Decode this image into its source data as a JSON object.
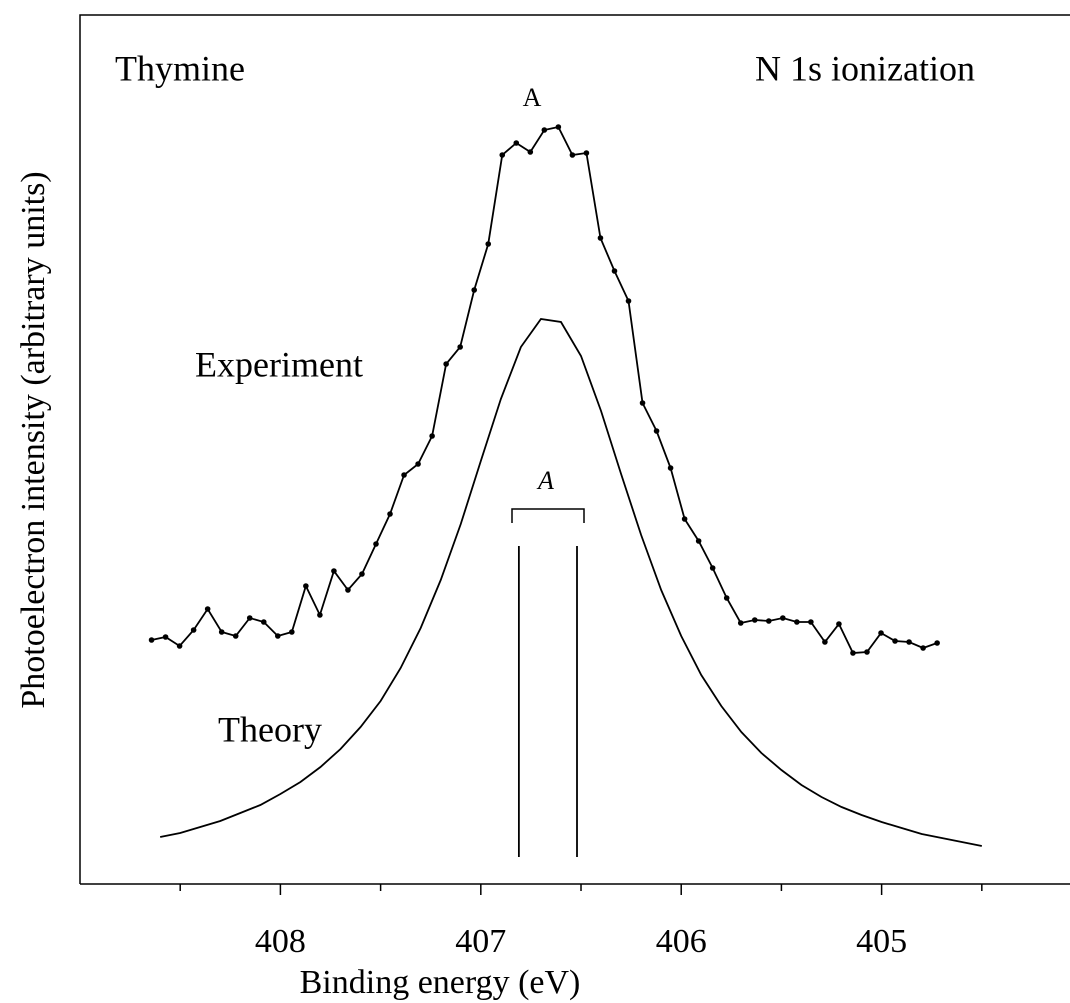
{
  "chart_data": {
    "type": "line",
    "x_label": "Binding energy (eV)",
    "y_label": "Photoelectron intensity (arbitrary units)",
    "annotations": [
      "Thymine",
      "N 1s ionization",
      "A",
      "Experiment",
      "Theory",
      "A"
    ],
    "xlim": [
      409,
      404.06
    ],
    "ylim": [
      0,
      869
    ],
    "xticks": [
      408,
      407,
      406,
      405
    ],
    "xminor": [
      408.5,
      407.5,
      406.5,
      405.5,
      404.5
    ],
    "series": [
      {
        "color": "#000000",
        "markers": true,
        "x": [
          408.643,
          408.573,
          408.503,
          408.433,
          408.363,
          408.293,
          408.223,
          408.153,
          408.083,
          408.013,
          407.943,
          407.873,
          407.803,
          407.733,
          407.663,
          407.593,
          407.523,
          407.453,
          407.383,
          407.313,
          407.243,
          407.173,
          407.103,
          407.033,
          406.963,
          406.893,
          406.823,
          406.753,
          406.683,
          406.613,
          406.543,
          406.473,
          406.403,
          406.333,
          406.263,
          406.193,
          406.123,
          406.053,
          405.983,
          405.913,
          405.843,
          405.773,
          405.703,
          405.633,
          405.563,
          405.493,
          405.423,
          405.353,
          405.283,
          405.213,
          405.143,
          405.073,
          405.003,
          404.933,
          404.863,
          404.793,
          404.723
        ],
        "values": [
          244,
          247,
          238,
          254,
          275,
          252,
          248,
          266,
          262,
          248,
          252,
          298,
          269,
          313,
          294,
          310,
          340,
          370,
          409,
          420,
          448,
          520,
          537,
          594,
          640,
          729,
          741,
          732,
          754,
          757,
          729,
          731,
          646,
          613,
          583,
          481,
          453,
          416,
          365,
          343,
          316,
          286,
          261,
          264,
          263,
          266,
          262,
          262,
          242,
          260,
          231,
          232,
          251,
          243,
          242,
          236,
          241
        ]
      },
      {
        "color": "#000000",
        "markers": false,
        "x": [
          408.6,
          408.5,
          408.4,
          408.3,
          408.2,
          408.1,
          408.0,
          407.9,
          407.8,
          407.7,
          407.6,
          407.5,
          407.4,
          407.3,
          407.2,
          407.1,
          407.0,
          406.9,
          406.8,
          406.7,
          406.6,
          406.5,
          406.4,
          406.3,
          406.2,
          406.1,
          406.0,
          405.9,
          405.8,
          405.7,
          405.6,
          405.5,
          405.4,
          405.3,
          405.2,
          405.1,
          405.0,
          404.9,
          404.8,
          404.7,
          404.6,
          404.5
        ],
        "values": [
          47,
          51,
          57,
          63,
          71,
          79,
          90,
          102,
          117,
          135,
          157,
          183,
          216,
          256,
          304,
          360,
          423,
          485,
          537,
          565,
          562,
          528,
          473,
          410,
          349,
          294,
          248,
          209,
          178,
          152,
          131,
          114,
          99,
          87,
          77,
          69,
          62,
          56,
          50,
          46,
          42,
          38
        ]
      }
    ],
    "sticks": {
      "x": [
        406.81,
        406.52
      ],
      "values": [
        338,
        338
      ],
      "base": 27
    }
  }
}
